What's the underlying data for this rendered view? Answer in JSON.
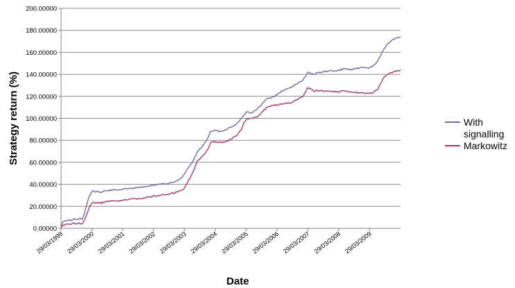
{
  "chart_data": {
    "type": "line",
    "title": "",
    "xlabel": "Date",
    "ylabel": "Strategy return (%)",
    "ylim": [
      0,
      200
    ],
    "y_ticks": [
      "0.00000",
      "20.00000",
      "40.00000",
      "60.00000",
      "80.00000",
      "100.00000",
      "120.00000",
      "140.00000",
      "160.00000",
      "180.00000",
      "200.00000"
    ],
    "x_range": [
      "1999-03-29",
      "2010-03-29"
    ],
    "x_ticks": [
      "29/03/1999",
      "29/03/2000",
      "29/03/2001",
      "29/03/2002",
      "29/03/2003",
      "29/03/2004",
      "29/03/2005",
      "29/03/2006",
      "29/03/2007",
      "29/03/2008",
      "29/03/2009"
    ],
    "grid": "horizontal",
    "legend": "right",
    "series": [
      {
        "name": "With signalling",
        "color": "#6e6e9e",
        "x": [
          "1999-03-29",
          "1999-04-19",
          "1999-06-01",
          "1999-07-01",
          "1999-08-01",
          "1999-09-01",
          "1999-10-01",
          "1999-11-01",
          "1999-12-01",
          "2000-01-01",
          "2000-02-01",
          "2000-03-01",
          "2000-04-01",
          "2000-05-01",
          "2000-07-01",
          "2000-09-01",
          "2001-01-01",
          "2001-06-01",
          "2002-01-01",
          "2002-06-01",
          "2002-10-01",
          "2003-01-01",
          "2003-03-01",
          "2003-04-01",
          "2003-05-01",
          "2003-07-01",
          "2003-09-01",
          "2003-11-01",
          "2004-01-01",
          "2004-02-01",
          "2004-04-01",
          "2004-06-01",
          "2004-08-01",
          "2004-10-01",
          "2004-12-01",
          "2005-02-01",
          "2005-03-01",
          "2005-04-01",
          "2005-06-01",
          "2005-08-01",
          "2005-10-01",
          "2005-12-01",
          "2006-03-01",
          "2006-06-01",
          "2006-09-01",
          "2006-12-01",
          "2007-02-01",
          "2007-04-01",
          "2007-06-01",
          "2007-09-01",
          "2007-12-01",
          "2008-03-01",
          "2008-06-01",
          "2008-09-01",
          "2008-12-01",
          "2009-03-01",
          "2009-05-01",
          "2009-07-01",
          "2009-09-01",
          "2009-11-01",
          "2010-01-01",
          "2010-03-29"
        ],
        "values": [
          2,
          6,
          7,
          8,
          7,
          9,
          8,
          9,
          8,
          14,
          23,
          30,
          34,
          33,
          33,
          34,
          35,
          36,
          38,
          40,
          41,
          43,
          46,
          50,
          54,
          60,
          70,
          75,
          82,
          88,
          89,
          88,
          90,
          92,
          95,
          100,
          103,
          106,
          105,
          108,
          113,
          118,
          120,
          125,
          128,
          132,
          135,
          142,
          140,
          142,
          143,
          143,
          145,
          144,
          146,
          146,
          147,
          152,
          161,
          168,
          172,
          174
        ]
      },
      {
        "name": "Markowitz",
        "color": "#a33a6e",
        "x": [
          "1999-03-29",
          "1999-04-19",
          "1999-06-01",
          "1999-07-01",
          "1999-08-01",
          "1999-09-01",
          "1999-10-01",
          "1999-11-01",
          "1999-12-01",
          "2000-01-01",
          "2000-02-01",
          "2000-03-01",
          "2000-04-01",
          "2000-05-01",
          "2000-07-01",
          "2000-09-01",
          "2001-01-01",
          "2001-06-01",
          "2002-01-01",
          "2002-06-01",
          "2002-10-01",
          "2003-01-01",
          "2003-03-01",
          "2003-04-01",
          "2003-05-01",
          "2003-07-01",
          "2003-09-01",
          "2003-11-01",
          "2004-01-01",
          "2004-02-01",
          "2004-04-01",
          "2004-06-01",
          "2004-08-01",
          "2004-10-01",
          "2004-12-01",
          "2005-02-01",
          "2005-03-01",
          "2005-04-01",
          "2005-06-01",
          "2005-08-01",
          "2005-10-01",
          "2005-12-01",
          "2006-03-01",
          "2006-06-01",
          "2006-09-01",
          "2006-12-01",
          "2007-02-01",
          "2007-04-01",
          "2007-06-01",
          "2007-09-01",
          "2007-12-01",
          "2008-03-01",
          "2008-06-01",
          "2008-09-01",
          "2008-12-01",
          "2009-03-01",
          "2009-05-01",
          "2009-07-01",
          "2009-09-01",
          "2009-11-01",
          "2010-01-01",
          "2010-03-29"
        ],
        "values": [
          1,
          3,
          4,
          4,
          4,
          5,
          4,
          5,
          4,
          8,
          14,
          20,
          23,
          23,
          23,
          24,
          25,
          26,
          28,
          30,
          31,
          33,
          35,
          37,
          41,
          50,
          62,
          66,
          72,
          78,
          79,
          78,
          79,
          81,
          84,
          90,
          96,
          99,
          100,
          101,
          106,
          110,
          112,
          113,
          114,
          117,
          120,
          128,
          125,
          125,
          125,
          124,
          125,
          124,
          123,
          123,
          123,
          126,
          136,
          140,
          142,
          144
        ]
      }
    ]
  }
}
